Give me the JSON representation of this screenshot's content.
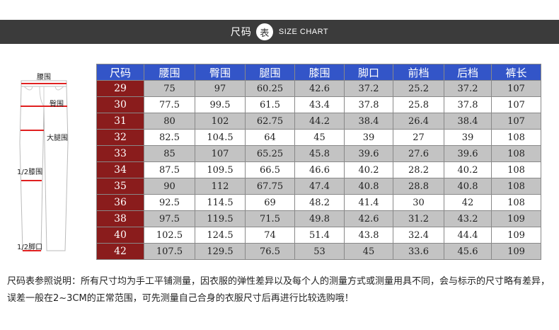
{
  "header": {
    "title_cn": "尺码",
    "title_badge": "表",
    "title_en": "SIZE CHART"
  },
  "diagram": {
    "labels": [
      "腰围",
      "臀围",
      "大腿围",
      "1/2膝围",
      "1/2脚口"
    ]
  },
  "table": {
    "headers": [
      "尺码",
      "腰围",
      "臀围",
      "腿围",
      "膝围",
      "脚口",
      "前档",
      "后档",
      "裤长"
    ],
    "rows": [
      [
        "29",
        "75",
        "97",
        "60.25",
        "42.6",
        "37.2",
        "25.2",
        "37.2",
        "107"
      ],
      [
        "30",
        "77.5",
        "99.5",
        "61.5",
        "43.4",
        "37.8",
        "25.8",
        "37.8",
        "107"
      ],
      [
        "31",
        "80",
        "102",
        "62.75",
        "44.2",
        "38.4",
        "26.4",
        "38.4",
        "107"
      ],
      [
        "32",
        "82.5",
        "104.5",
        "64",
        "45",
        "39",
        "27",
        "39",
        "108"
      ],
      [
        "33",
        "85",
        "107",
        "65.25",
        "45.8",
        "39.6",
        "27.6",
        "39.6",
        "108"
      ],
      [
        "34",
        "87.5",
        "109.5",
        "66.5",
        "46.6",
        "40.2",
        "28.2",
        "40.2",
        "108"
      ],
      [
        "35",
        "90",
        "112",
        "67.75",
        "47.4",
        "40.8",
        "28.8",
        "40.8",
        "108"
      ],
      [
        "36",
        "92.5",
        "114.5",
        "69",
        "48.2",
        "41.4",
        "30",
        "42",
        "108"
      ],
      [
        "38",
        "97.5",
        "119.5",
        "71.5",
        "49.8",
        "42.6",
        "31.2",
        "43.2",
        "109"
      ],
      [
        "40",
        "102.5",
        "124.5",
        "74",
        "51.4",
        "43.8",
        "32.4",
        "44.4",
        "109"
      ],
      [
        "42",
        "107.5",
        "129.5",
        "76.5",
        "53",
        "45",
        "33.6",
        "45.6",
        "109"
      ]
    ]
  },
  "note": "尺码表参照说明：所有尺寸均为手工平铺测量，因衣服的弹性差异以及每个人的测量方式或测量用具不同，会与标示的尺寸略有差异，误差一般在2~3CM的正常范围，可先测量自己合身的衣服尺寸后再进行比较选购哦！",
  "colors": {
    "header_bg": "#3b3b3b",
    "table_header_bg": "#3355c8",
    "size_cell_bg": "#8a1c1c",
    "row_alt_bg": "#c3c3c3",
    "measure_line": "#e02020"
  }
}
